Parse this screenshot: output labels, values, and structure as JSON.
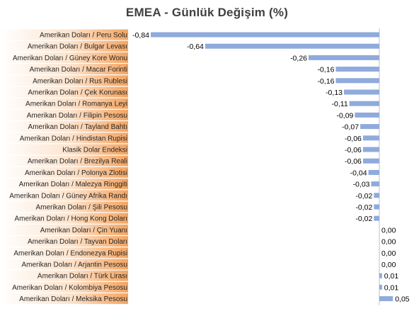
{
  "chart_data": {
    "type": "bar",
    "orientation": "horizontal",
    "title": "EMEA - Günlük Değişim (%)",
    "xlabel": "",
    "ylabel": "",
    "xlim": [
      -0.84,
      0.05
    ],
    "grid": false,
    "legend": "none",
    "categories": [
      "Amerikan Doları / Peru Solu",
      "Amerikan Doları / Bulgar Levası",
      "Amerikan Doları / Güney Kore Wonu",
      "Amerikan Doları / Macar Forinti",
      "Amerikan Doları / Rus Rublesi",
      "Amerikan Doları / Çek Korunası",
      "Amerikan Doları / Romanya Leyi",
      "Amerikan Doları / Filipin Pesosu",
      "Amerikan Doları / Tayland Bahtı",
      "Amerikan Doları / Hindistan Rupisi",
      "Klasik Dolar Endeksi",
      "Amerikan Doları / Brezilya Reali",
      "Amerikan Doları / Polonya Zlotisi",
      "Amerikan Doları / Malezya Ringgiti",
      "Amerikan Doları / Güney Afrika Randı",
      "Amerikan Doları / Şili Pesosu",
      "Amerikan Doları / Hong Kong Doları",
      "Amerikan Doları / Çin Yuanı",
      "Amerikan Doları / Tayvan Doları",
      "Amerikan Doları / Endonezya Rupisi",
      "Amerikan Doları / Arjantin Pesosu",
      "Amerikan Doları / Türk Lirası",
      "Amerikan Doları / Kolombiya Pesosu",
      "Amerikan Doları / Meksika Pesosu"
    ],
    "values": [
      -0.84,
      -0.64,
      -0.26,
      -0.16,
      -0.16,
      -0.13,
      -0.11,
      -0.09,
      -0.07,
      -0.06,
      -0.06,
      -0.06,
      -0.04,
      -0.03,
      -0.02,
      -0.02,
      -0.02,
      0.0,
      0.0,
      0.0,
      0.0,
      0.01,
      0.01,
      0.05
    ],
    "value_labels": [
      "-0,84",
      "-0,64",
      "-0,26",
      "-0,16",
      "-0,16",
      "-0,13",
      "-0,11",
      "-0,09",
      "-0,07",
      "-0,06",
      "-0,06",
      "-0,06",
      "-0,04",
      "-0,03",
      "-0,02",
      "-0,02",
      "-0,02",
      "0,00",
      "0,00",
      "0,00",
      "0,00",
      "0,01",
      "0,01",
      "0,05"
    ],
    "colors": {
      "bar": "#8faadc",
      "axis": "#bfbfbf",
      "label_band_start": "#ffffff",
      "label_band_end": "#f4a460",
      "title": "#404040"
    }
  }
}
